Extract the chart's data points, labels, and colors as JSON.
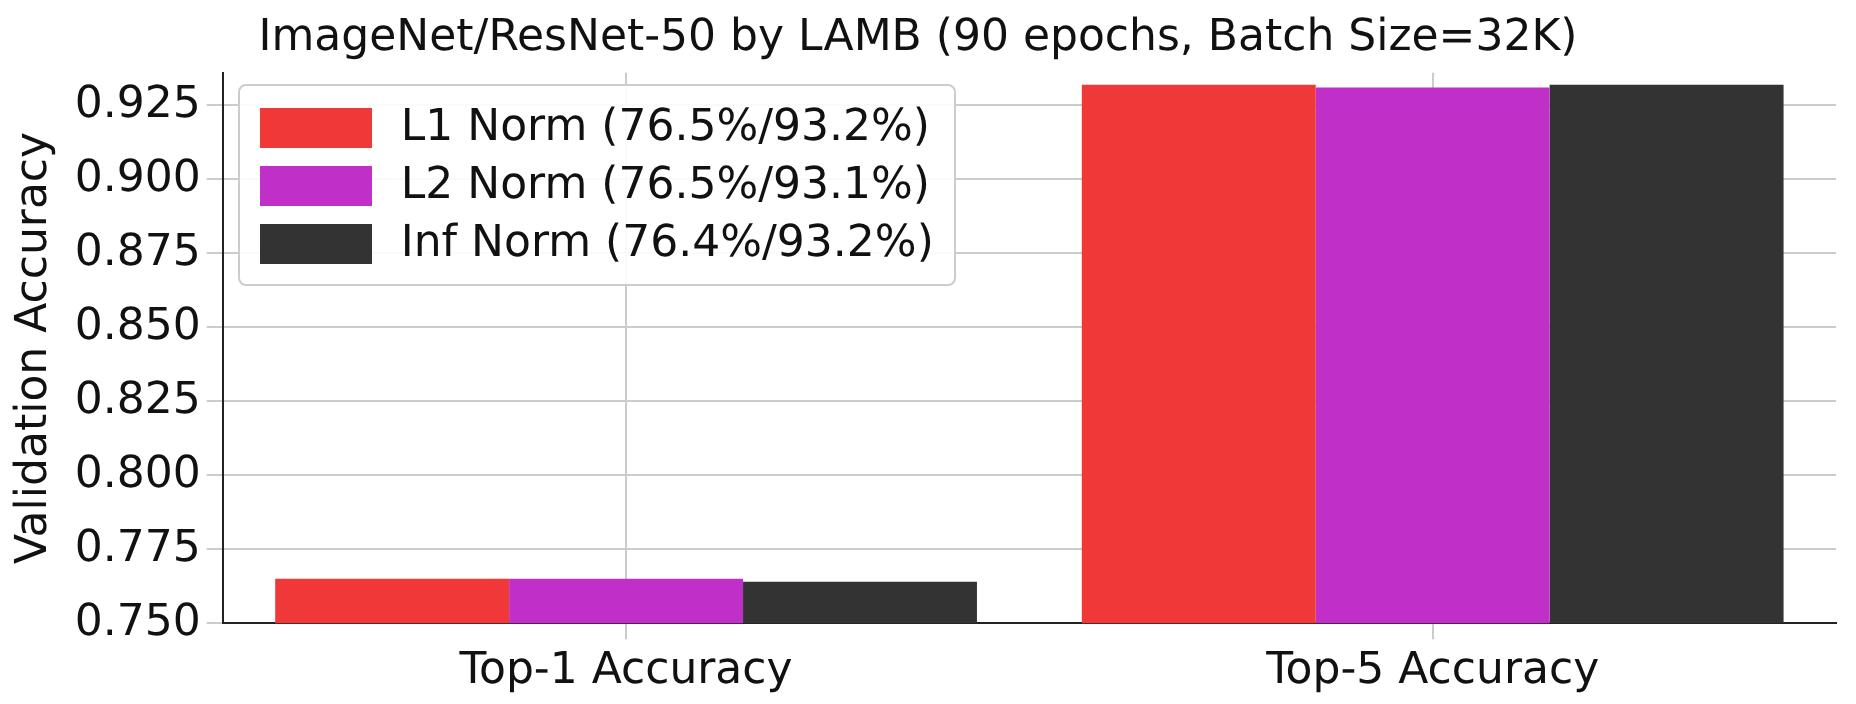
{
  "chart_data": {
    "type": "bar",
    "title": "ImageNet/ResNet-50 by LAMB (90 epochs, Batch Size=32K)",
    "ylabel": "Validation Accuracy",
    "categories": [
      "Top-1 Accuracy",
      "Top-5 Accuracy"
    ],
    "series": [
      {
        "name": "L1 Norm (76.5%/93.2%)",
        "color": "#f03838",
        "values": [
          0.765,
          0.932
        ]
      },
      {
        "name": "L2 Norm (76.5%/93.1%)",
        "color": "#c030c8",
        "values": [
          0.765,
          0.931
        ]
      },
      {
        "name": "Inf Norm (76.4%/93.2%)",
        "color": "#333333",
        "values": [
          0.764,
          0.932
        ]
      }
    ],
    "ylim": [
      0.75,
      0.936
    ],
    "yticks": [
      {
        "value": 0.75,
        "label": "0.750"
      },
      0.775,
      {
        "value": 0.8,
        "label": "0.800"
      },
      0.825,
      {
        "value": 0.85,
        "label": "0.850"
      },
      0.875,
      {
        "value": 0.9,
        "label": "0.900"
      },
      0.925
    ],
    "grid": true,
    "legend": "top left"
  }
}
